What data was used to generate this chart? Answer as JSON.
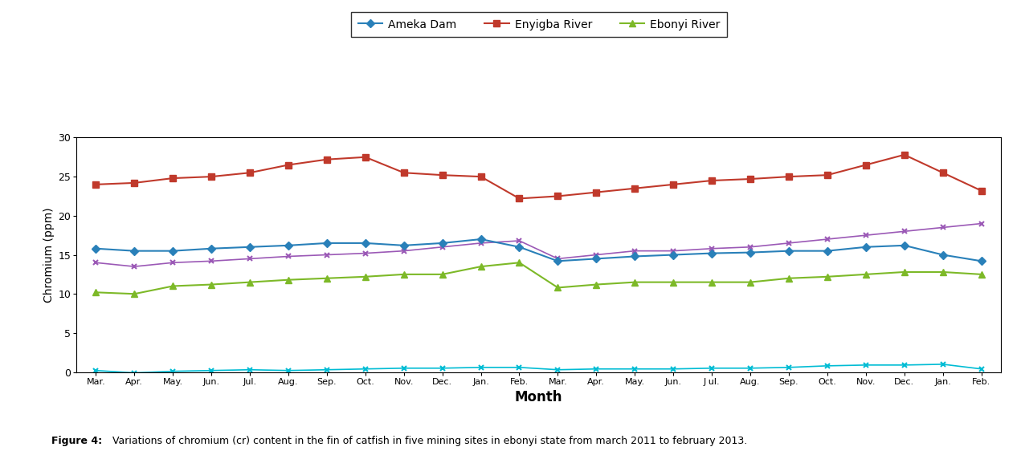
{
  "months": [
    "Mar.",
    "Apr.",
    "May.",
    "Jun.",
    "Jul.",
    "Aug.",
    "Sep.",
    "Oct.",
    "Nov.",
    "Dec.",
    "Jan.",
    "Feb.",
    "Mar.",
    "Apr.",
    "May.",
    "Jun.",
    "J ul.",
    "Aug.",
    "Sep.",
    "Oct.",
    "Nov.",
    "Dec.",
    "Jan.",
    "Feb."
  ],
  "enyigba_river": [
    24.0,
    24.2,
    24.8,
    25.0,
    25.5,
    26.5,
    27.2,
    27.5,
    25.5,
    25.2,
    25.0,
    22.2,
    22.5,
    23.0,
    23.5,
    24.0,
    24.5,
    24.7,
    25.0,
    25.2,
    26.5,
    27.8,
    25.5,
    23.2
  ],
  "ameka_dam": [
    15.8,
    15.5,
    15.5,
    15.8,
    16.0,
    16.2,
    16.5,
    16.5,
    16.2,
    16.5,
    17.0,
    16.0,
    14.2,
    14.5,
    14.8,
    15.0,
    15.2,
    15.3,
    15.5,
    15.5,
    16.0,
    16.2,
    15.0,
    14.2
  ],
  "ebonyi_river": [
    10.2,
    10.0,
    11.0,
    11.2,
    11.5,
    11.8,
    12.0,
    12.2,
    12.5,
    12.5,
    13.5,
    14.0,
    10.8,
    11.2,
    11.5,
    11.5,
    11.5,
    11.5,
    12.0,
    12.2,
    12.5,
    12.8,
    12.8,
    12.5
  ],
  "purple_series": [
    14.0,
    13.5,
    14.0,
    14.2,
    14.5,
    14.8,
    15.0,
    15.2,
    15.5,
    16.0,
    16.5,
    16.8,
    14.5,
    15.0,
    15.5,
    15.5,
    15.8,
    16.0,
    16.5,
    17.0,
    17.5,
    18.0,
    18.5,
    19.0
  ],
  "cyan_series": [
    0.2,
    -0.1,
    0.1,
    0.2,
    0.3,
    0.2,
    0.3,
    0.4,
    0.5,
    0.5,
    0.6,
    0.6,
    0.3,
    0.4,
    0.4,
    0.4,
    0.5,
    0.5,
    0.6,
    0.8,
    0.9,
    0.9,
    1.0,
    0.4
  ],
  "enyigba_color": "#C0392B",
  "ameka_color": "#2980B9",
  "ebonyi_color": "#7DB928",
  "purple_color": "#9B59B6",
  "cyan_color": "#00BCD4",
  "ylabel": "Chromium (ppm)",
  "xlabel": "Month",
  "ylim": [
    0,
    30
  ],
  "yticks": [
    0,
    5,
    10,
    15,
    20,
    25,
    30
  ],
  "legend_labels": [
    "Ameka Dam",
    "Enyigba River",
    "Ebonyi River"
  ],
  "figure_caption_bold": "Figure 4:",
  "figure_caption_normal": " Variations of chromium (cr) content in the fin of catfish in five mining sites in ebonyi state from march 2011 to february 2013."
}
